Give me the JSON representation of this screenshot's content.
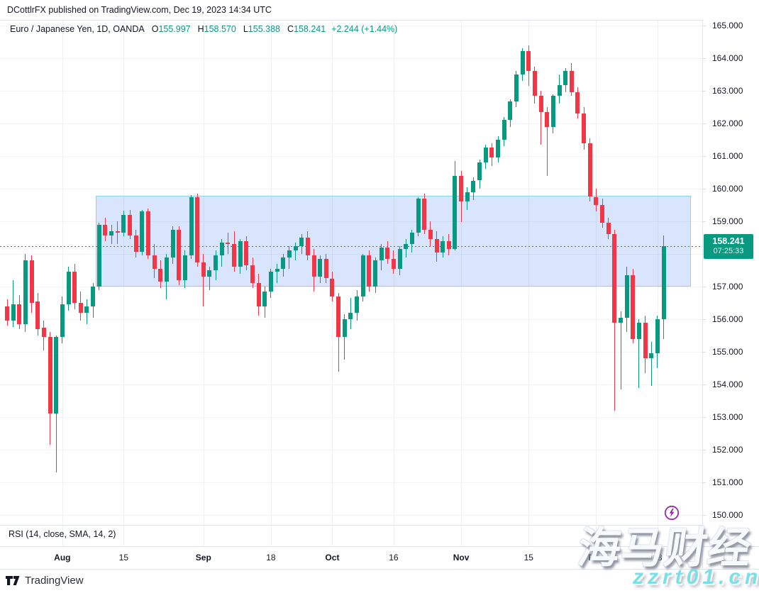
{
  "attribution": {
    "text": "DCottlrFX published on TradingView.com, Dec 19, 2023 14:34 UTC"
  },
  "legend": {
    "title": "Euro / Japanese Yen, 1D, OANDA",
    "values": [
      {
        "label": "O",
        "value": "155.997"
      },
      {
        "label": "H",
        "value": "158.570"
      },
      {
        "label": "L",
        "value": "155.388"
      },
      {
        "label": "C",
        "value": "158.241"
      }
    ],
    "change": "+2.244 (+1.44%)"
  },
  "price_axis": {
    "current_price": "158.241",
    "countdown": "07:25:33"
  },
  "rsi": {
    "label": "RSI (14, close, SMA, 14, 2)"
  },
  "footer": {
    "brand": "TradingView"
  },
  "watermark": {
    "line1": "海马财经",
    "line2": "zzrt01.cn"
  },
  "colors": {
    "up": "#089981",
    "down": "#f23645",
    "zone_fill": "rgba(47,110,243,0.18)",
    "zone_border": "#86d6ec",
    "flash_purple": "#9c27b0",
    "badge": "#089981"
  },
  "chart_data": {
    "type": "candlestick",
    "title": "Euro / Japanese Yen, 1D, OANDA",
    "symbol": "Euro / Japanese Yen",
    "interval": "1D",
    "exchange": "OANDA",
    "current": {
      "o": 155.997,
      "h": 158.57,
      "l": 155.388,
      "c": 158.241,
      "change": 2.244,
      "change_pct": 1.44
    },
    "ylim": [
      150.0,
      165.0
    ],
    "axis_tick_step": 1.0,
    "grid": true,
    "zone": {
      "top_price": 159.78,
      "bottom_price": 157.05,
      "i1": 14.5,
      "i2": 111.2
    },
    "time_labels": [
      {
        "label": "Aug",
        "i": 9,
        "major": true
      },
      {
        "label": "15",
        "i": 19,
        "major": false
      },
      {
        "label": "Sep",
        "i": 32,
        "major": true
      },
      {
        "label": "18",
        "i": 43,
        "major": false
      },
      {
        "label": "Oct",
        "i": 53,
        "major": true
      },
      {
        "label": "16",
        "i": 63,
        "major": false
      },
      {
        "label": "Nov",
        "i": 74,
        "major": true
      },
      {
        "label": "15",
        "i": 85,
        "major": false
      },
      {
        "label": "Dec",
        "i": 96,
        "major": true
      },
      {
        "label": "18",
        "i": 106,
        "major": false
      }
    ],
    "candles": [
      [
        156.4,
        156.6,
        155.8,
        155.95
      ],
      [
        155.95,
        157.2,
        155.75,
        156.45
      ],
      [
        156.45,
        156.75,
        155.7,
        155.85
      ],
      [
        155.85,
        158.0,
        155.6,
        157.8
      ],
      [
        157.8,
        157.95,
        156.2,
        156.5
      ],
      [
        156.55,
        156.8,
        155.5,
        155.7
      ],
      [
        155.75,
        155.95,
        155.05,
        155.45
      ],
      [
        155.45,
        155.6,
        152.15,
        153.1
      ],
      [
        153.1,
        155.5,
        151.3,
        155.45
      ],
      [
        155.45,
        156.7,
        155.25,
        156.45
      ],
      [
        156.45,
        157.6,
        156.25,
        157.45
      ],
      [
        157.45,
        157.7,
        156.3,
        156.5
      ],
      [
        156.5,
        156.85,
        155.95,
        156.2
      ],
      [
        156.2,
        156.6,
        155.85,
        156.4
      ],
      [
        156.4,
        157.1,
        156.05,
        157.0
      ],
      [
        157.0,
        158.95,
        156.9,
        158.9
      ],
      [
        158.9,
        159.1,
        158.4,
        158.56
      ],
      [
        158.56,
        158.9,
        158.3,
        158.7
      ],
      [
        158.7,
        159.0,
        158.3,
        158.66
      ],
      [
        158.66,
        159.32,
        158.55,
        159.2
      ],
      [
        159.2,
        159.35,
        158.45,
        158.56
      ],
      [
        158.56,
        158.75,
        157.9,
        158.06
      ],
      [
        158.06,
        159.35,
        157.95,
        159.3
      ],
      [
        159.3,
        159.4,
        157.85,
        157.95
      ],
      [
        157.95,
        158.3,
        157.25,
        157.55
      ],
      [
        157.55,
        157.8,
        156.95,
        157.15
      ],
      [
        157.15,
        158.0,
        156.6,
        157.9
      ],
      [
        157.9,
        158.85,
        157.7,
        158.75
      ],
      [
        158.75,
        158.85,
        157.05,
        157.2
      ],
      [
        157.2,
        158.1,
        156.95,
        157.95
      ],
      [
        157.95,
        159.8,
        157.85,
        159.75
      ],
      [
        159.75,
        159.85,
        157.6,
        157.75
      ],
      [
        157.75,
        158.0,
        156.4,
        157.3
      ],
      [
        157.3,
        157.6,
        156.9,
        157.5
      ],
      [
        157.5,
        158.1,
        157.2,
        157.95
      ],
      [
        157.95,
        158.45,
        157.6,
        158.35
      ],
      [
        158.35,
        158.66,
        158.0,
        158.3
      ],
      [
        158.3,
        158.7,
        157.45,
        157.6
      ],
      [
        157.6,
        158.45,
        157.4,
        158.4
      ],
      [
        158.4,
        158.55,
        157.5,
        157.65
      ],
      [
        157.65,
        157.9,
        156.95,
        157.1
      ],
      [
        157.1,
        157.4,
        156.1,
        156.4
      ],
      [
        156.4,
        157.0,
        156.05,
        156.85
      ],
      [
        156.85,
        157.55,
        156.65,
        157.45
      ],
      [
        157.45,
        157.7,
        157.1,
        157.55
      ],
      [
        157.55,
        158.0,
        157.3,
        157.9
      ],
      [
        157.9,
        158.25,
        157.55,
        158.1
      ],
      [
        158.1,
        158.35,
        157.8,
        158.25
      ],
      [
        158.25,
        158.6,
        158.0,
        158.5
      ],
      [
        158.5,
        158.7,
        157.8,
        157.95
      ],
      [
        157.95,
        158.15,
        156.85,
        157.3
      ],
      [
        157.3,
        157.95,
        157.1,
        157.85
      ],
      [
        157.85,
        158.0,
        157.1,
        157.25
      ],
      [
        157.25,
        157.45,
        156.55,
        156.7
      ],
      [
        156.7,
        156.8,
        154.4,
        155.45
      ],
      [
        155.45,
        156.15,
        154.75,
        156.0
      ],
      [
        156.0,
        156.65,
        155.7,
        156.2
      ],
      [
        156.2,
        156.9,
        155.95,
        156.7
      ],
      [
        156.7,
        158.0,
        156.55,
        157.95
      ],
      [
        157.95,
        158.1,
        156.85,
        157.0
      ],
      [
        157.0,
        157.9,
        156.8,
        157.8
      ],
      [
        157.8,
        158.3,
        157.5,
        158.2
      ],
      [
        158.2,
        158.4,
        157.7,
        157.85
      ],
      [
        157.85,
        158.1,
        157.4,
        157.55
      ],
      [
        157.55,
        158.25,
        157.35,
        158.15
      ],
      [
        158.15,
        158.45,
        157.9,
        158.3
      ],
      [
        158.3,
        158.75,
        158.05,
        158.65
      ],
      [
        158.65,
        159.75,
        158.55,
        159.7
      ],
      [
        159.7,
        159.85,
        158.6,
        158.73
      ],
      [
        158.73,
        159.0,
        158.25,
        158.45
      ],
      [
        158.45,
        158.7,
        157.75,
        158.05
      ],
      [
        158.05,
        158.55,
        157.9,
        158.4
      ],
      [
        158.4,
        158.6,
        157.95,
        158.15
      ],
      [
        158.15,
        160.85,
        158.1,
        160.4
      ],
      [
        160.4,
        160.55,
        158.98,
        159.6
      ],
      [
        159.6,
        160.05,
        159.35,
        159.9
      ],
      [
        159.9,
        160.35,
        159.65,
        160.25
      ],
      [
        160.25,
        160.9,
        160.0,
        160.8
      ],
      [
        160.8,
        161.35,
        160.6,
        161.26
      ],
      [
        161.26,
        161.4,
        160.7,
        160.95
      ],
      [
        160.95,
        161.6,
        160.8,
        161.5
      ],
      [
        161.5,
        162.2,
        161.3,
        162.1
      ],
      [
        162.1,
        162.75,
        161.9,
        162.67
      ],
      [
        162.67,
        163.6,
        162.5,
        163.5
      ],
      [
        163.5,
        164.3,
        163.3,
        164.22
      ],
      [
        164.22,
        164.4,
        163.15,
        163.6
      ],
      [
        163.6,
        163.75,
        162.6,
        162.85
      ],
      [
        162.85,
        163.0,
        161.35,
        162.35
      ],
      [
        162.35,
        162.5,
        160.4,
        161.9
      ],
      [
        161.9,
        162.9,
        161.7,
        162.85
      ],
      [
        162.85,
        163.5,
        162.6,
        163.17
      ],
      [
        163.17,
        163.7,
        162.95,
        163.6
      ],
      [
        163.6,
        163.85,
        162.85,
        162.95
      ],
      [
        162.95,
        163.1,
        162.15,
        162.3
      ],
      [
        162.3,
        162.5,
        161.2,
        161.4
      ],
      [
        161.4,
        161.55,
        159.6,
        159.75
      ],
      [
        159.75,
        160.0,
        159.3,
        159.5
      ],
      [
        159.5,
        159.7,
        158.8,
        158.95
      ],
      [
        158.95,
        159.1,
        158.45,
        158.6
      ],
      [
        158.6,
        158.75,
        153.2,
        155.9
      ],
      [
        155.9,
        156.25,
        153.85,
        156.05
      ],
      [
        156.05,
        157.6,
        155.6,
        157.35
      ],
      [
        157.35,
        157.55,
        155.25,
        155.4
      ],
      [
        155.4,
        156.0,
        153.9,
        155.9
      ],
      [
        155.9,
        156.1,
        154.35,
        154.8
      ],
      [
        154.8,
        155.3,
        153.95,
        154.95
      ],
      [
        154.95,
        156.1,
        154.5,
        156.0
      ],
      [
        155.997,
        158.57,
        155.388,
        158.241
      ]
    ]
  }
}
